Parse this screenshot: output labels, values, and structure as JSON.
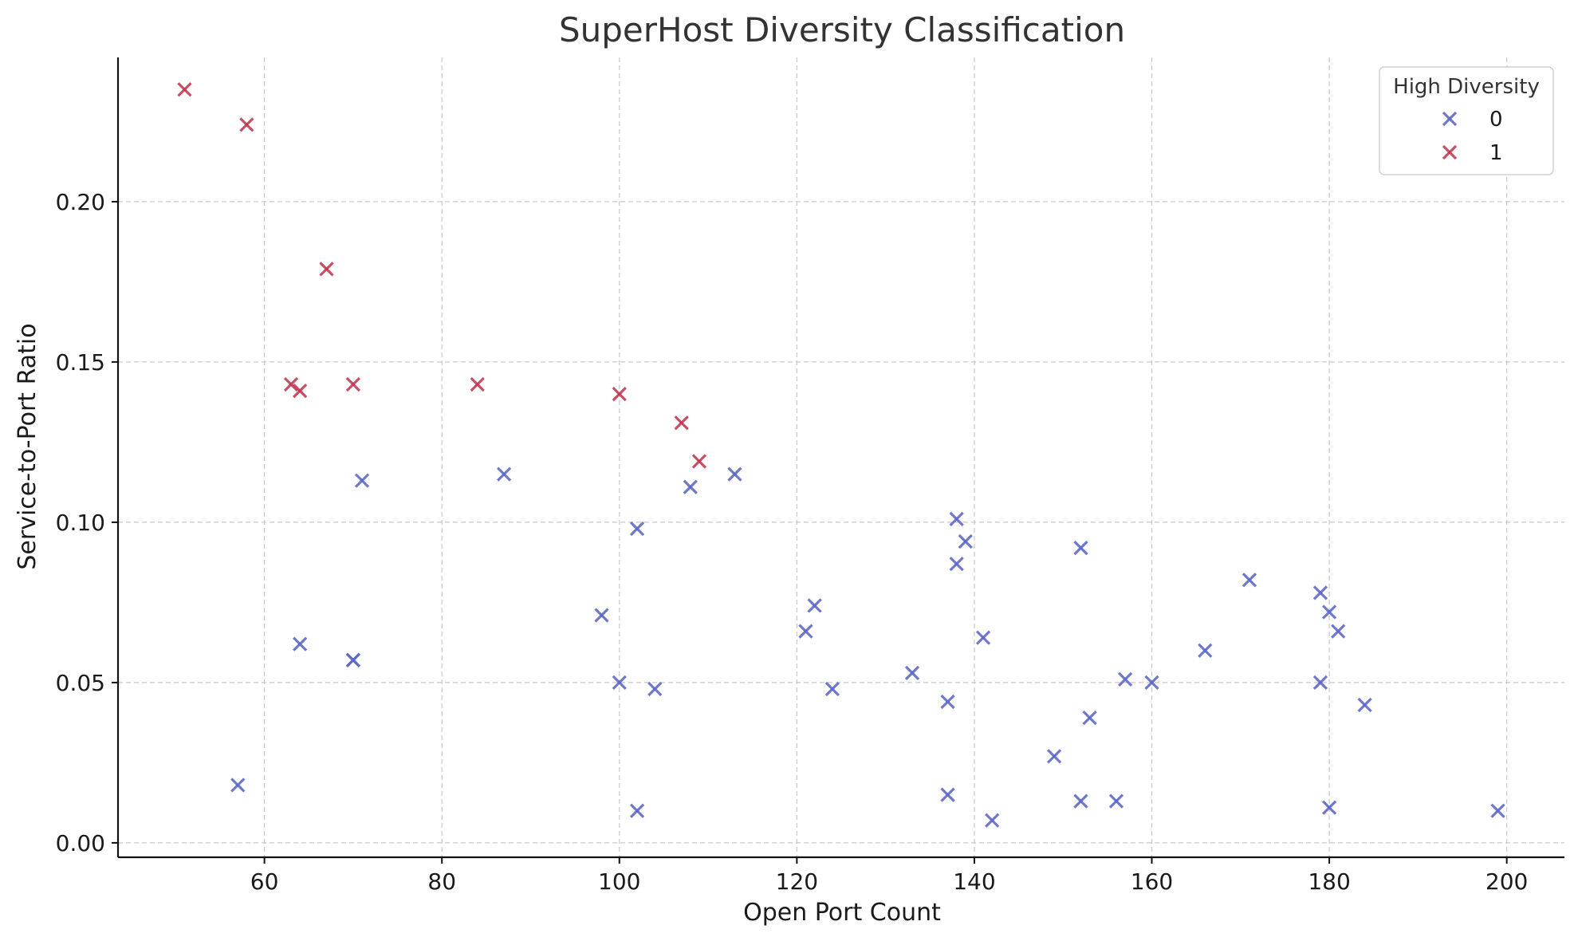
{
  "chart_data": {
    "type": "scatter",
    "title": "SuperHost Diversity Classification",
    "xlabel": "Open Port Count",
    "ylabel": "Service-to-Port Ratio",
    "xlim": [
      43.5,
      206.5
    ],
    "ylim": [
      -0.0045,
      0.245
    ],
    "xticks": [
      60,
      80,
      100,
      120,
      140,
      160,
      180,
      200
    ],
    "xtick_labels": [
      "60",
      "80",
      "100",
      "120",
      "140",
      "160",
      "180",
      "200"
    ],
    "yticks": [
      0.0,
      0.05,
      0.1,
      0.15,
      0.2
    ],
    "ytick_labels": [
      "0.00",
      "0.05",
      "0.10",
      "0.15",
      "0.20"
    ],
    "grid": true,
    "marker": "x",
    "legend": {
      "title": "High Diversity",
      "placement": "top-right"
    },
    "series": [
      {
        "name": "0",
        "color": "#5b66c4",
        "x": [
          71,
          87,
          108,
          113,
          102,
          98,
          64,
          70,
          70,
          100,
          104,
          57,
          102,
          121,
          122,
          124,
          133,
          137,
          137,
          138,
          138,
          139,
          141,
          142,
          149,
          152,
          152,
          153,
          156,
          157,
          160,
          166,
          171,
          179,
          179,
          180,
          180,
          181,
          184,
          199
        ],
        "y": [
          0.113,
          0.115,
          0.111,
          0.115,
          0.098,
          0.071,
          0.062,
          0.057,
          0.057,
          0.05,
          0.048,
          0.018,
          0.01,
          0.066,
          0.074,
          0.048,
          0.053,
          0.044,
          0.015,
          0.101,
          0.087,
          0.094,
          0.064,
          0.007,
          0.027,
          0.092,
          0.013,
          0.039,
          0.013,
          0.051,
          0.05,
          0.06,
          0.082,
          0.078,
          0.05,
          0.072,
          0.011,
          0.066,
          0.043,
          0.01
        ]
      },
      {
        "name": "1",
        "color": "#c0364f",
        "x": [
          51,
          58,
          67,
          63,
          64,
          70,
          84,
          100,
          107,
          109
        ],
        "y": [
          0.235,
          0.224,
          0.179,
          0.143,
          0.141,
          0.143,
          0.143,
          0.14,
          0.131,
          0.119
        ]
      }
    ]
  }
}
